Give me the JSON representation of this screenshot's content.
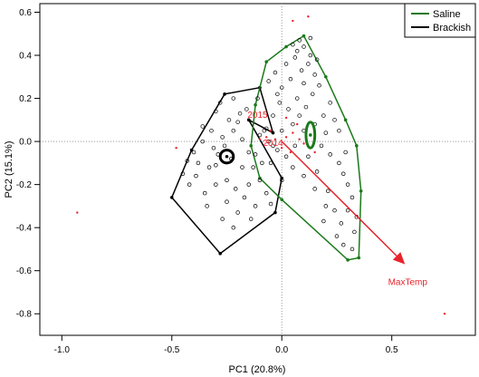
{
  "chart_data": {
    "type": "scatter",
    "title": "",
    "xlabel": "PC1 (20.8%)",
    "ylabel": "PC2 (15.1%)",
    "xlim": [
      -1.1,
      0.88
    ],
    "ylim": [
      -0.9,
      0.64
    ],
    "x_ticks": [
      -1.0,
      -0.5,
      0.0,
      0.5
    ],
    "x_tick_labels": [
      "-1.0",
      "-0.5",
      "0.0",
      "0.5"
    ],
    "y_ticks": [
      -0.8,
      -0.6,
      -0.4,
      -0.2,
      0.0,
      0.2,
      0.4,
      0.6
    ],
    "y_tick_labels": [
      "-0.8",
      "-0.6",
      "-0.4",
      "-0.2",
      "0.0",
      "0.2",
      "0.4",
      "0.6"
    ],
    "grid": false,
    "reference_lines": {
      "x": 0,
      "y": 0,
      "style": "dotted"
    },
    "legend": {
      "placement": "top-right",
      "entries": [
        {
          "label": "Saline",
          "color": "#1a7a1a"
        },
        {
          "label": "Brackish",
          "color": "#000000"
        }
      ]
    },
    "annotations": [
      {
        "text": "2015",
        "x": -0.11,
        "y": 0.11,
        "color": "#e8232b"
      },
      {
        "text": "2014",
        "x": -0.04,
        "y": -0.02,
        "color": "#e8232b"
      }
    ],
    "arrow": {
      "label": "MaxTemp",
      "from": [
        0.0,
        0.0
      ],
      "to": [
        0.56,
        -0.57
      ],
      "color": "#e8232b"
    },
    "series": [
      {
        "name": "Brackish",
        "color": "#000000",
        "hull": [
          [
            -0.41,
            -0.04
          ],
          [
            -0.26,
            0.22
          ],
          [
            -0.1,
            0.25
          ],
          [
            -0.04,
            0.04
          ],
          [
            -0.15,
            0.1
          ],
          [
            0.0,
            -0.17
          ],
          [
            -0.03,
            -0.33
          ],
          [
            -0.28,
            -0.52
          ],
          [
            -0.5,
            -0.26
          ]
        ],
        "centroid": [
          -0.25,
          -0.07
        ],
        "ellipse": {
          "rx": 0.03,
          "ry": 0.03
        },
        "points": [
          [
            -0.3,
            0.14
          ],
          [
            -0.28,
            0.18
          ],
          [
            -0.22,
            0.2
          ],
          [
            -0.19,
            0.13
          ],
          [
            -0.24,
            0.1
          ],
          [
            -0.32,
            0.05
          ],
          [
            -0.36,
            0.0
          ],
          [
            -0.4,
            -0.05
          ],
          [
            -0.38,
            -0.1
          ],
          [
            -0.33,
            -0.12
          ],
          [
            -0.29,
            -0.06
          ],
          [
            -0.27,
            0.02
          ],
          [
            -0.22,
            0.05
          ],
          [
            -0.18,
            0.01
          ],
          [
            -0.15,
            -0.05
          ],
          [
            -0.13,
            -0.12
          ],
          [
            -0.1,
            -0.18
          ],
          [
            -0.07,
            -0.24
          ],
          [
            -0.05,
            -0.29
          ],
          [
            -0.12,
            -0.3
          ],
          [
            -0.17,
            -0.26
          ],
          [
            -0.21,
            -0.22
          ],
          [
            -0.25,
            -0.18
          ],
          [
            -0.3,
            -0.2
          ],
          [
            -0.35,
            -0.24
          ],
          [
            -0.42,
            -0.2
          ],
          [
            -0.45,
            -0.15
          ],
          [
            -0.39,
            -0.16
          ],
          [
            -0.34,
            -0.3
          ],
          [
            -0.27,
            -0.36
          ],
          [
            -0.22,
            -0.4
          ],
          [
            -0.2,
            -0.33
          ],
          [
            -0.15,
            -0.2
          ],
          [
            -0.12,
            -0.06
          ],
          [
            -0.1,
            0.03
          ],
          [
            -0.16,
            0.15
          ],
          [
            -0.2,
            0.09
          ],
          [
            -0.26,
            -0.02
          ],
          [
            -0.31,
            -0.03
          ],
          [
            -0.36,
            0.07
          ],
          [
            -0.25,
            -0.28
          ],
          [
            -0.09,
            -0.1
          ],
          [
            -0.07,
            0.06
          ],
          [
            -0.04,
            -0.02
          ],
          [
            -0.18,
            -0.12
          ],
          [
            -0.23,
            -0.08
          ],
          [
            -0.11,
            0.2
          ],
          [
            -0.14,
            -0.36
          ],
          [
            -0.3,
            -0.11
          ],
          [
            -0.43,
            -0.09
          ]
        ]
      },
      {
        "name": "Saline",
        "color": "#1a7a1a",
        "hull": [
          [
            -0.07,
            0.37
          ],
          [
            0.02,
            0.44
          ],
          [
            0.1,
            0.49
          ],
          [
            0.2,
            0.3
          ],
          [
            0.29,
            0.1
          ],
          [
            0.34,
            -0.02
          ],
          [
            0.36,
            -0.23
          ],
          [
            0.35,
            -0.54
          ],
          [
            0.3,
            -0.55
          ],
          [
            0.0,
            -0.27
          ],
          [
            -0.1,
            -0.17
          ],
          [
            -0.14,
            -0.02
          ],
          [
            -0.12,
            0.17
          ]
        ],
        "centroid": [
          0.13,
          0.03
        ],
        "ellipse": {
          "rx": 0.02,
          "ry": 0.06
        },
        "points": [
          [
            0.05,
            0.45
          ],
          [
            0.08,
            0.47
          ],
          [
            0.1,
            0.44
          ],
          [
            0.13,
            0.4
          ],
          [
            0.06,
            0.39
          ],
          [
            0.02,
            0.36
          ],
          [
            -0.03,
            0.32
          ],
          [
            -0.06,
            0.28
          ],
          [
            0.0,
            0.25
          ],
          [
            0.04,
            0.29
          ],
          [
            0.09,
            0.33
          ],
          [
            0.12,
            0.36
          ],
          [
            0.15,
            0.31
          ],
          [
            0.17,
            0.26
          ],
          [
            0.14,
            0.22
          ],
          [
            0.1,
            0.27
          ],
          [
            0.07,
            0.2
          ],
          [
            0.03,
            0.15
          ],
          [
            -0.01,
            0.18
          ],
          [
            -0.04,
            0.12
          ],
          [
            -0.08,
            0.05
          ],
          [
            -0.06,
            0.0
          ],
          [
            -0.02,
            -0.04
          ],
          [
            0.02,
            -0.07
          ],
          [
            0.06,
            -0.02
          ],
          [
            0.1,
            0.05
          ],
          [
            0.15,
            0.08
          ],
          [
            0.19,
            0.12
          ],
          [
            0.22,
            0.18
          ],
          [
            0.24,
            0.1
          ],
          [
            0.2,
            0.04
          ],
          [
            0.18,
            -0.02
          ],
          [
            0.22,
            -0.06
          ],
          [
            0.26,
            -0.1
          ],
          [
            0.28,
            -0.15
          ],
          [
            0.3,
            -0.2
          ],
          [
            0.32,
            -0.26
          ],
          [
            0.3,
            -0.32
          ],
          [
            0.27,
            -0.38
          ],
          [
            0.25,
            -0.44
          ],
          [
            0.28,
            -0.48
          ],
          [
            0.32,
            -0.5
          ],
          [
            0.33,
            -0.42
          ],
          [
            0.34,
            -0.35
          ],
          [
            0.2,
            -0.3
          ],
          [
            0.15,
            -0.22
          ],
          [
            0.1,
            -0.16
          ],
          [
            0.05,
            -0.12
          ],
          [
            0.0,
            -0.18
          ],
          [
            -0.05,
            -0.1
          ],
          [
            0.12,
            -0.07
          ],
          [
            0.16,
            -0.14
          ],
          [
            0.21,
            -0.23
          ],
          [
            0.24,
            -0.32
          ],
          [
            0.08,
            0.12
          ],
          [
            0.11,
            0.16
          ],
          [
            0.05,
            0.08
          ],
          [
            0.0,
            0.05
          ],
          [
            0.26,
            0.05
          ],
          [
            0.29,
            -0.05
          ],
          [
            0.13,
            0.48
          ],
          [
            0.16,
            0.38
          ],
          [
            -0.02,
            0.22
          ],
          [
            0.07,
            0.42
          ],
          [
            0.19,
            -0.37
          ]
        ]
      },
      {
        "name": "",
        "color": "#e8232b",
        "points": [
          [
            -0.93,
            -0.33
          ],
          [
            0.05,
            0.56
          ],
          [
            0.12,
            0.58
          ],
          [
            0.74,
            -0.8
          ],
          [
            -0.48,
            -0.03
          ],
          [
            0.05,
            0.04
          ],
          [
            0.02,
            0.02
          ],
          [
            -0.03,
            0.01
          ],
          [
            -0.07,
            0.02
          ],
          [
            -0.1,
            0.01
          ],
          [
            0.08,
            0.01
          ],
          [
            0.1,
            -0.01
          ],
          [
            0.0,
            -0.03
          ],
          [
            0.04,
            -0.05
          ],
          [
            0.07,
            0.08
          ],
          [
            0.11,
            0.05
          ],
          [
            -0.05,
            0.05
          ],
          [
            0.13,
            0.09
          ],
          [
            0.15,
            -0.05
          ],
          [
            0.02,
            0.11
          ]
        ]
      }
    ]
  }
}
